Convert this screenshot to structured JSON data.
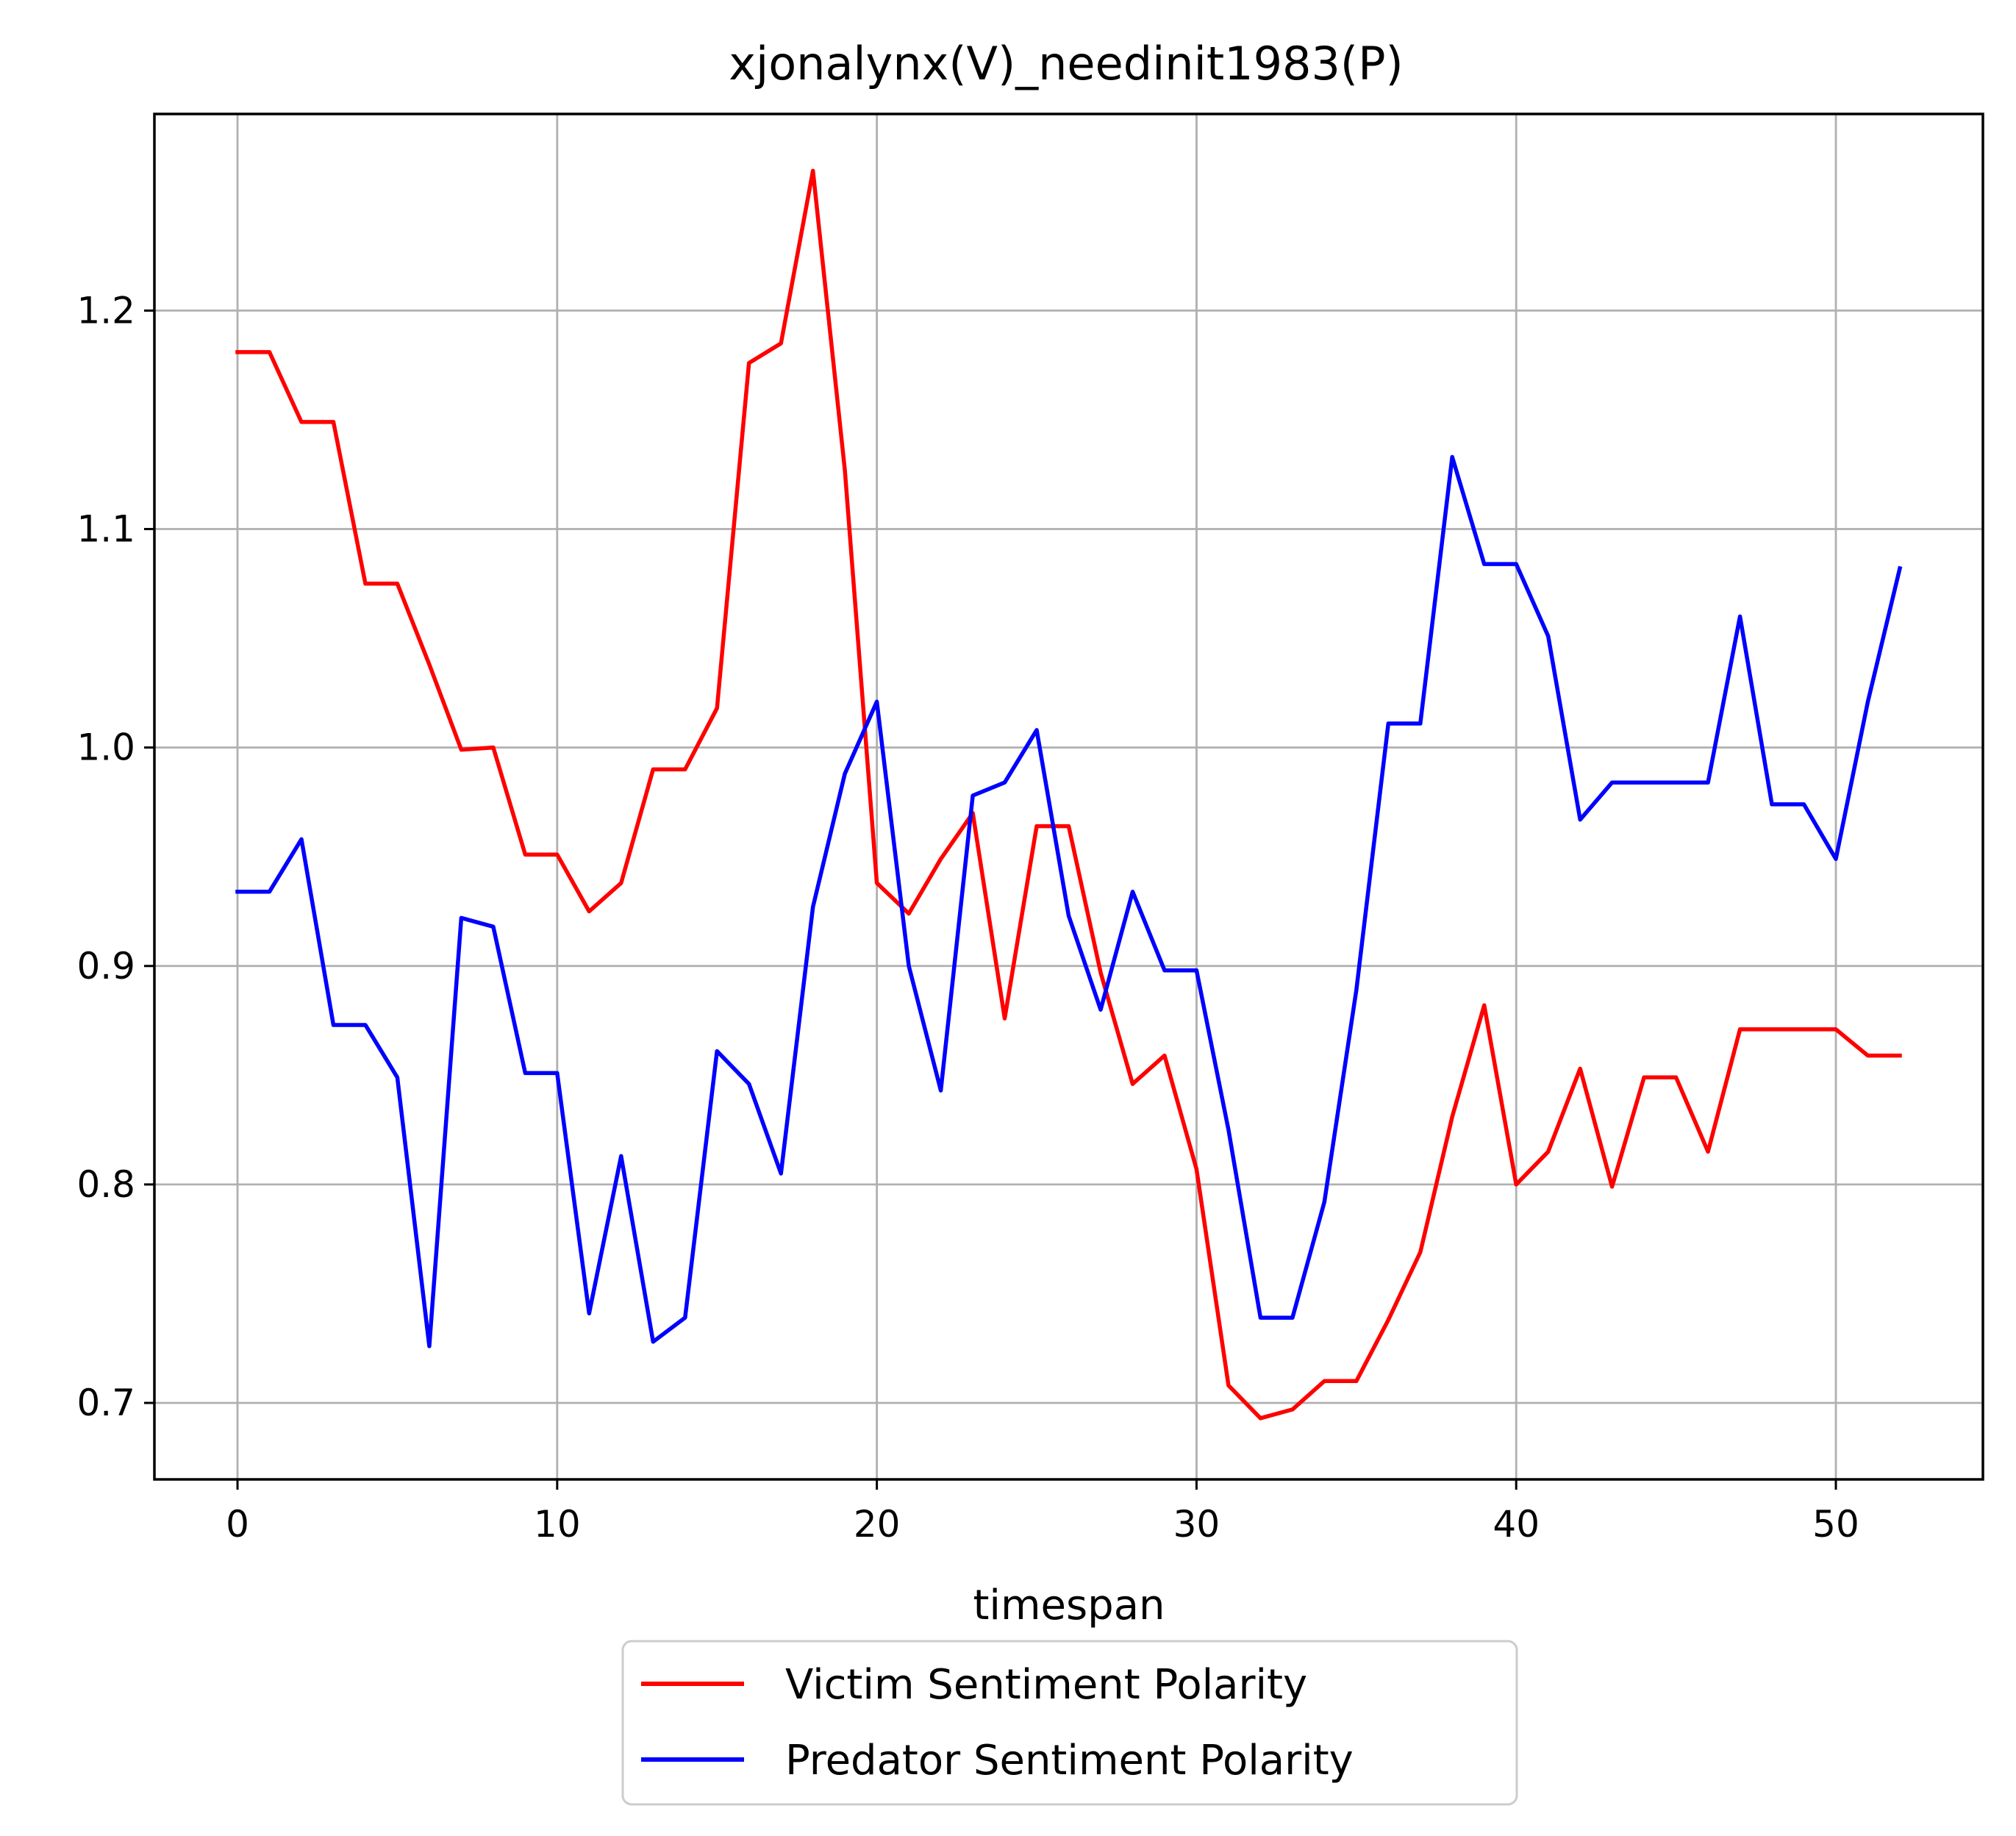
{
  "chart_data": {
    "type": "line",
    "title": "xjonalynx(V)_needinit1983(P)",
    "xlabel": "timespan",
    "ylabel": "",
    "xlim": [
      -2.6,
      54.6
    ],
    "ylim": [
      0.665,
      1.29
    ],
    "xticks": [
      0,
      10,
      20,
      30,
      40,
      50
    ],
    "yticks": [
      0.7,
      0.8,
      0.9,
      1.0,
      1.1,
      1.2
    ],
    "xtick_labels": [
      "0",
      "10",
      "20",
      "30",
      "40",
      "50"
    ],
    "ytick_labels": [
      "0.7",
      "0.8",
      "0.9",
      "1.0",
      "1.1",
      "1.2"
    ],
    "grid": true,
    "legend_position": "below the plot",
    "x": [
      0,
      1,
      2,
      3,
      4,
      5,
      6,
      7,
      8,
      9,
      10,
      11,
      12,
      13,
      14,
      15,
      16,
      17,
      18,
      19,
      20,
      21,
      22,
      23,
      24,
      25,
      26,
      27,
      28,
      29,
      30,
      31,
      32,
      33,
      34,
      35,
      36,
      37,
      38,
      39,
      40,
      41,
      42,
      43,
      44,
      45,
      46,
      47,
      48,
      49,
      50,
      51,
      52
    ],
    "series": [
      {
        "name": "Victim Sentiment Polarity",
        "color": "#ff0000",
        "values": [
          1.181,
          1.181,
          1.149,
          1.149,
          1.075,
          1.075,
          1.038,
          0.999,
          1.0,
          0.951,
          0.951,
          0.925,
          0.938,
          0.99,
          0.99,
          1.018,
          1.176,
          1.185,
          1.264,
          1.127,
          0.938,
          0.924,
          0.949,
          0.97,
          0.876,
          0.964,
          0.964,
          0.897,
          0.846,
          0.859,
          0.807,
          0.708,
          0.693,
          0.697,
          0.71,
          0.71,
          0.738,
          0.769,
          0.831,
          0.882,
          0.8,
          0.815,
          0.853,
          0.799,
          0.849,
          0.849,
          0.815,
          0.871,
          0.871,
          0.871,
          0.871,
          0.859,
          0.859
        ]
      },
      {
        "name": "Predator Sentiment Polarity",
        "color": "#0000ff",
        "values": [
          0.934,
          0.934,
          0.958,
          0.873,
          0.873,
          0.849,
          0.726,
          0.922,
          0.918,
          0.851,
          0.851,
          0.741,
          0.813,
          0.728,
          0.739,
          0.861,
          0.846,
          0.805,
          0.927,
          0.988,
          1.021,
          0.9,
          0.843,
          0.978,
          0.984,
          1.008,
          0.923,
          0.88,
          0.934,
          0.898,
          0.898,
          0.825,
          0.739,
          0.739,
          0.792,
          0.889,
          1.011,
          1.011,
          1.133,
          1.084,
          1.084,
          1.051,
          0.967,
          0.984,
          0.984,
          0.984,
          0.984,
          1.06,
          0.974,
          0.974,
          0.949,
          1.021,
          1.082
        ]
      }
    ]
  }
}
